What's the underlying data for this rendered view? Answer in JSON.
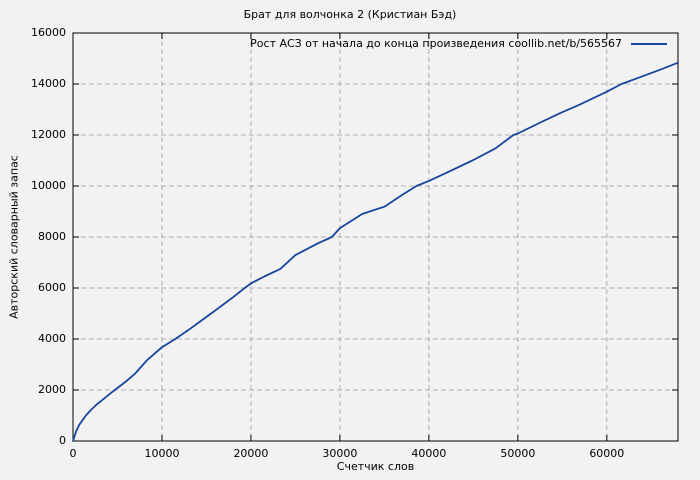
{
  "chart_data": {
    "type": "line",
    "title": "Брат для волчонка 2 (Кристиан Бэд)",
    "xlabel": "Счетчик слов",
    "ylabel": "Авторский словарный запас",
    "xlim": [
      0,
      68000
    ],
    "ylim": [
      0,
      16000
    ],
    "x_ticks": [
      0,
      10000,
      20000,
      30000,
      40000,
      50000,
      60000
    ],
    "y_ticks": [
      0,
      2000,
      4000,
      6000,
      8000,
      10000,
      12000,
      14000,
      16000
    ],
    "grid": true,
    "legend_position": "top-right-inside",
    "colors": {
      "background": "#f2f2f2",
      "border": "#000000",
      "grid": "#b0b0b0",
      "line": "#17469e",
      "text": "#000000"
    },
    "series": [
      {
        "name": "Рост АСЗ от начала до конца произведения coollib.net/b/565567",
        "color": "#17469e",
        "points": [
          [
            0,
            0
          ],
          [
            350,
            380
          ],
          [
            700,
            630
          ],
          [
            1100,
            830
          ],
          [
            1500,
            1020
          ],
          [
            2000,
            1210
          ],
          [
            2600,
            1410
          ],
          [
            3300,
            1610
          ],
          [
            4000,
            1810
          ],
          [
            4700,
            2000
          ],
          [
            6000,
            2350
          ],
          [
            7000,
            2650
          ],
          [
            8350,
            3180
          ],
          [
            10000,
            3680
          ],
          [
            11500,
            4000
          ],
          [
            13000,
            4360
          ],
          [
            14500,
            4740
          ],
          [
            16000,
            5120
          ],
          [
            18000,
            5640
          ],
          [
            19300,
            6000
          ],
          [
            20000,
            6180
          ],
          [
            21500,
            6450
          ],
          [
            23300,
            6750
          ],
          [
            25000,
            7290
          ],
          [
            27500,
            7750
          ],
          [
            29100,
            8000
          ],
          [
            30000,
            8350
          ],
          [
            32500,
            8900
          ],
          [
            35000,
            9190
          ],
          [
            37000,
            9650
          ],
          [
            38600,
            10000
          ],
          [
            40000,
            10200
          ],
          [
            42000,
            10520
          ],
          [
            45000,
            11020
          ],
          [
            47500,
            11480
          ],
          [
            49500,
            12000
          ],
          [
            50000,
            12060
          ],
          [
            52300,
            12450
          ],
          [
            54700,
            12850
          ],
          [
            57000,
            13200
          ],
          [
            60000,
            13700
          ],
          [
            61650,
            14000
          ],
          [
            64000,
            14300
          ],
          [
            66000,
            14560
          ],
          [
            68000,
            14835
          ]
        ]
      }
    ]
  }
}
